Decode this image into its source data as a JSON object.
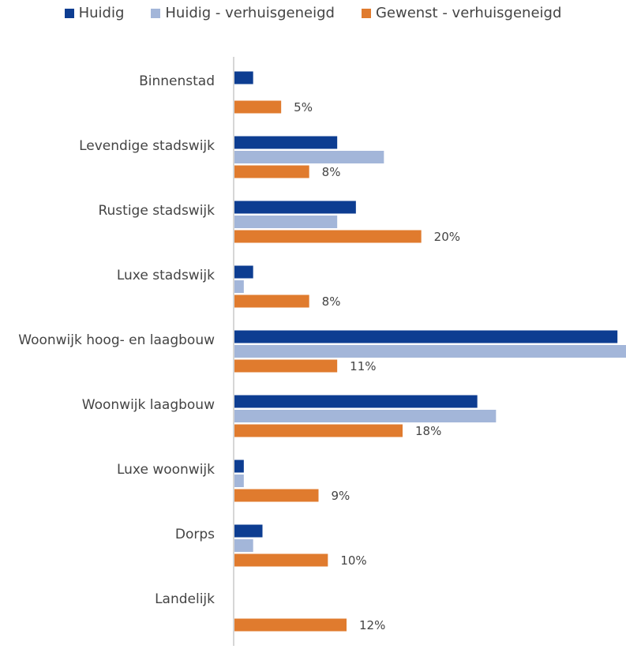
{
  "chart_data": {
    "type": "bar",
    "orientation": "horizontal",
    "categories": [
      "Binnenstad",
      "Levendige stadswijk",
      "Rustige stadswijk",
      "Luxe stadswijk",
      "Woonwijk hoog- en laagbouw",
      "Woonwijk laagbouw",
      "Luxe woonwijk",
      "Dorps",
      "Landelijk"
    ],
    "series": [
      {
        "name": "Huidig",
        "color": "#0d3d91",
        "values": [
          2,
          11,
          13,
          2,
          41,
          26,
          1,
          3,
          0
        ]
      },
      {
        "name": "Huidig - verhuisgeneigd",
        "color": "#a3b6d9",
        "values": [
          0,
          16,
          11,
          1,
          42,
          28,
          1,
          2,
          0
        ]
      },
      {
        "name": "Gewenst - verhuisgeneigd",
        "color": "#e07b2e",
        "values": [
          5,
          8,
          20,
          8,
          11,
          18,
          9,
          10,
          12
        ],
        "labels": [
          "5%",
          "8%",
          "20%",
          "8%",
          "11%",
          "18%",
          "9%",
          "10%",
          "12%"
        ]
      }
    ],
    "xlim": [
      0,
      42
    ],
    "legend": "top",
    "grid": false
  }
}
